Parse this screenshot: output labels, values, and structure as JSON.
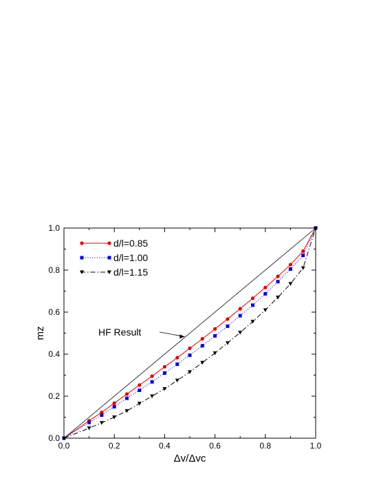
{
  "chart_data": {
    "type": "line",
    "title": "",
    "xlabel": "Δv/Δvc",
    "ylabel": "mz",
    "xlim": [
      0.0,
      1.0
    ],
    "ylim": [
      0.0,
      1.0
    ],
    "x_ticks": [
      "0.0",
      "0.2",
      "0.4",
      "0.6",
      "0.8",
      "1.0"
    ],
    "y_ticks": [
      "0.0",
      "0.2",
      "0.4",
      "0.6",
      "0.8",
      "1.0"
    ],
    "grid": false,
    "legend_position": "top-left",
    "series": [
      {
        "name": "d/l=0.85",
        "color": "#e00000",
        "marker": "circle",
        "line": "solid",
        "x": [
          0.0,
          0.1,
          0.15,
          0.2,
          0.25,
          0.3,
          0.35,
          0.4,
          0.45,
          0.5,
          0.55,
          0.6,
          0.65,
          0.7,
          0.75,
          0.8,
          0.85,
          0.9,
          0.95,
          1.0
        ],
        "y": [
          0.0,
          0.083,
          0.123,
          0.167,
          0.21,
          0.253,
          0.295,
          0.34,
          0.383,
          0.428,
          0.473,
          0.52,
          0.567,
          0.616,
          0.666,
          0.717,
          0.77,
          0.826,
          0.89,
          1.0
        ]
      },
      {
        "name": "d/l=1.00",
        "color": "#0000e0",
        "marker": "square",
        "line": "dotted",
        "x": [
          0.0,
          0.1,
          0.15,
          0.2,
          0.25,
          0.3,
          0.35,
          0.4,
          0.45,
          0.5,
          0.55,
          0.6,
          0.65,
          0.7,
          0.75,
          0.8,
          0.85,
          0.9,
          0.95,
          1.0
        ],
        "y": [
          0.0,
          0.075,
          0.11,
          0.15,
          0.19,
          0.228,
          0.268,
          0.31,
          0.352,
          0.395,
          0.44,
          0.487,
          0.533,
          0.583,
          0.633,
          0.687,
          0.745,
          0.805,
          0.87,
          1.0
        ]
      },
      {
        "name": "d/l=1.15",
        "color": "#000000",
        "marker": "triangle-down",
        "line": "dash-dot",
        "x": [
          0.0,
          0.1,
          0.15,
          0.2,
          0.25,
          0.3,
          0.35,
          0.4,
          0.45,
          0.5,
          0.55,
          0.6,
          0.65,
          0.7,
          0.75,
          0.8,
          0.85,
          0.9,
          0.95,
          1.0
        ],
        "y": [
          0.0,
          0.048,
          0.073,
          0.1,
          0.13,
          0.165,
          0.2,
          0.235,
          0.275,
          0.315,
          0.36,
          0.405,
          0.453,
          0.503,
          0.555,
          0.61,
          0.67,
          0.735,
          0.81,
          1.0
        ]
      },
      {
        "name": "",
        "color": "#000000",
        "marker": "none",
        "line": "solid-thin",
        "x": [
          0.0,
          1.0
        ],
        "y": [
          0.0,
          1.0
        ]
      }
    ],
    "annotations": [
      {
        "text": "HF Result",
        "points_to": [
          0.49,
          0.49
        ]
      }
    ]
  }
}
